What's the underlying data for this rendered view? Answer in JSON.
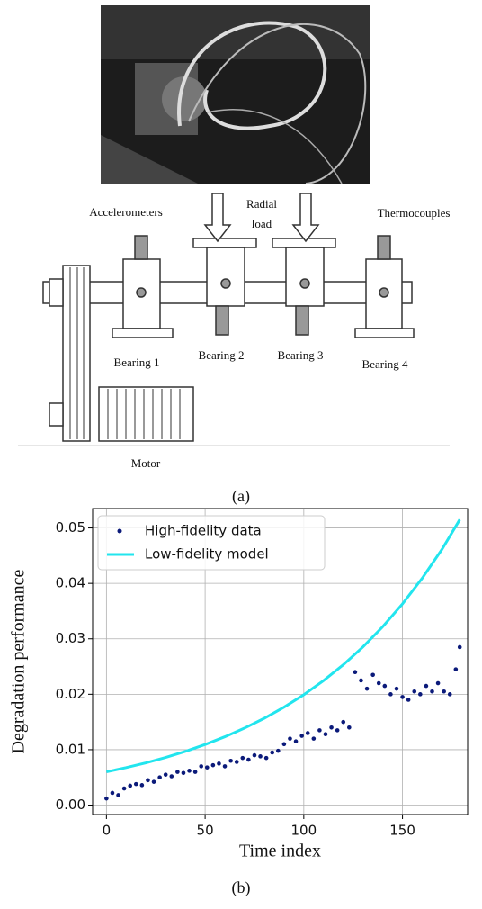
{
  "figure_a": {
    "labels": {
      "accelerometers": "Accelerometers",
      "radial_load": [
        "Radial",
        "load"
      ],
      "thermocouples": "Thermocouples",
      "bearings": [
        "Bearing 1",
        "Bearing 2",
        "Bearing 3",
        "Bearing 4"
      ],
      "motor": "Motor"
    },
    "caption": "(a)"
  },
  "chart_data": {
    "type": "scatter-line",
    "xlabel": "Time index",
    "ylabel": "Degradation performance",
    "xlim": [
      -7,
      183
    ],
    "ylim": [
      -0.0017,
      0.0535
    ],
    "xticks": [
      0,
      50,
      100,
      150
    ],
    "yticks": [
      {
        "value": 0,
        "label": "0.00"
      },
      {
        "value": 0.01,
        "label": "0.01"
      },
      {
        "value": 0.02,
        "label": "0.02"
      },
      {
        "value": 0.03,
        "label": "0.03"
      },
      {
        "value": 0.04,
        "label": "0.04"
      },
      {
        "value": 0.05,
        "label": "0.05"
      }
    ],
    "grid": true,
    "legend": "upper-left",
    "series": [
      {
        "name": "High-fidelity data",
        "kind": "points",
        "color": "#0b1a7a",
        "x": [
          0,
          3,
          6,
          9,
          12,
          15,
          18,
          21,
          24,
          27,
          30,
          33,
          36,
          39,
          42,
          45,
          48,
          51,
          54,
          57,
          60,
          63,
          66,
          69,
          72,
          75,
          78,
          81,
          84,
          87,
          90,
          93,
          96,
          99,
          102,
          105,
          108,
          111,
          114,
          117,
          120,
          123,
          126,
          129,
          132,
          135,
          138,
          141,
          144,
          147,
          150,
          153,
          156,
          159,
          162,
          165,
          168,
          171,
          174,
          177,
          179
        ],
        "values": [
          0.0012,
          0.0022,
          0.0018,
          0.003,
          0.0035,
          0.0038,
          0.0036,
          0.0045,
          0.0042,
          0.005,
          0.0055,
          0.0052,
          0.006,
          0.0058,
          0.0062,
          0.006,
          0.007,
          0.0068,
          0.0072,
          0.0075,
          0.007,
          0.008,
          0.0078,
          0.0085,
          0.0082,
          0.009,
          0.0088,
          0.0085,
          0.0095,
          0.0098,
          0.011,
          0.012,
          0.0115,
          0.0125,
          0.013,
          0.012,
          0.0135,
          0.0128,
          0.014,
          0.0135,
          0.015,
          0.014,
          0.024,
          0.0225,
          0.021,
          0.0235,
          0.022,
          0.0215,
          0.02,
          0.021,
          0.0195,
          0.019,
          0.0205,
          0.02,
          0.0215,
          0.0205,
          0.022,
          0.0205,
          0.02,
          0.0245,
          0.0285
        ]
      },
      {
        "name": "Low-fidelity model",
        "kind": "line",
        "color": "#22e5ee",
        "x": [
          0,
          10,
          20,
          30,
          40,
          50,
          60,
          70,
          80,
          90,
          100,
          110,
          120,
          130,
          140,
          150,
          160,
          170,
          179
        ],
        "values": [
          0.006,
          0.00677,
          0.00763,
          0.0086,
          0.0097,
          0.01093,
          0.01233,
          0.0139,
          0.01567,
          0.01767,
          0.01992,
          0.02246,
          0.02532,
          0.02855,
          0.03219,
          0.0363,
          0.04093,
          0.04614,
          0.0515
        ]
      }
    ]
  },
  "caption_b": "(b)"
}
